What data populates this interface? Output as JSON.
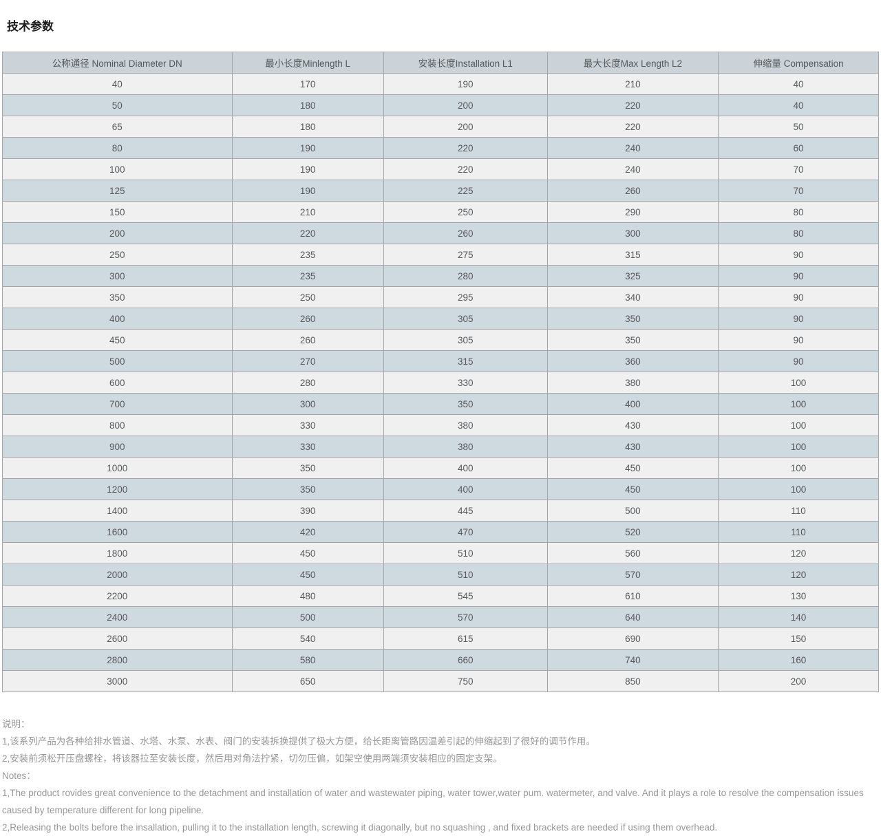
{
  "page": {
    "title": "技术参数"
  },
  "table": {
    "headers": [
      "公称通径 Nominal Diameter DN",
      "最小长度Minlength L",
      "安装长度Installation L1",
      "最大长度Max Length L2",
      "伸缩量 Compensation"
    ],
    "col_widths_pct": [
      26.2,
      17.3,
      18.7,
      19.5,
      18.3
    ],
    "rows": [
      [
        40,
        170,
        190,
        210,
        40
      ],
      [
        50,
        180,
        200,
        220,
        40
      ],
      [
        65,
        180,
        200,
        220,
        50
      ],
      [
        80,
        190,
        220,
        240,
        60
      ],
      [
        100,
        190,
        220,
        240,
        70
      ],
      [
        125,
        190,
        225,
        260,
        70
      ],
      [
        150,
        210,
        250,
        290,
        80
      ],
      [
        200,
        220,
        260,
        300,
        80
      ],
      [
        250,
        235,
        275,
        315,
        90
      ],
      [
        300,
        235,
        280,
        325,
        90
      ],
      [
        350,
        250,
        295,
        340,
        90
      ],
      [
        400,
        260,
        305,
        350,
        90
      ],
      [
        450,
        260,
        305,
        350,
        90
      ],
      [
        500,
        270,
        315,
        360,
        90
      ],
      [
        600,
        280,
        330,
        380,
        100
      ],
      [
        700,
        300,
        350,
        400,
        100
      ],
      [
        800,
        330,
        380,
        430,
        100
      ],
      [
        900,
        330,
        380,
        430,
        100
      ],
      [
        1000,
        350,
        400,
        450,
        100
      ],
      [
        1200,
        350,
        400,
        450,
        100
      ],
      [
        1400,
        390,
        445,
        500,
        110
      ],
      [
        1600,
        420,
        470,
        520,
        110
      ],
      [
        1800,
        450,
        510,
        560,
        120
      ],
      [
        2000,
        450,
        510,
        570,
        120
      ],
      [
        2200,
        480,
        545,
        610,
        130
      ],
      [
        2400,
        500,
        570,
        640,
        140
      ],
      [
        2600,
        540,
        615,
        690,
        150
      ],
      [
        2800,
        580,
        660,
        740,
        160
      ],
      [
        3000,
        650,
        750,
        850,
        200
      ]
    ]
  },
  "notes": {
    "cn_label": "说明：",
    "cn_lines": [
      "1,该系列产品为各种给排水管道、水塔、水泵、水表、阀门的安装拆换提供了极大方便，给长距离管路因温差引起的伸缩起到了很好的调节作用。",
      "2,安装前须松开压盘螺栓，将该器拉至安装长度，然后用对角法拧紧，切勿压偏，如架空使用两端须安装相应的固定支架。"
    ],
    "en_label": "Notes：",
    "en_lines": [
      "1,The product rovides great convenience to the detachment and installation of water and wastewater piping, water tower,water pum. watermeter, and valve. And it plays a role to resolve the compensation issues caused by temperature different for long pipeline.",
      "2,Releasing the bolts before the insallation, pulling it to the installation length, screwing it diagonally, but no squashing , and fixed brackets are needed if using them overhead."
    ]
  },
  "colors": {
    "header_bg": "#cbd3d9",
    "row_light_bg": "#f0f0f0",
    "row_dark_bg": "#cfd9e0",
    "border": "#a4a7aa",
    "cell_text": "#56585a",
    "notes_text": "#979797",
    "title_text": "#1c1c1c"
  }
}
